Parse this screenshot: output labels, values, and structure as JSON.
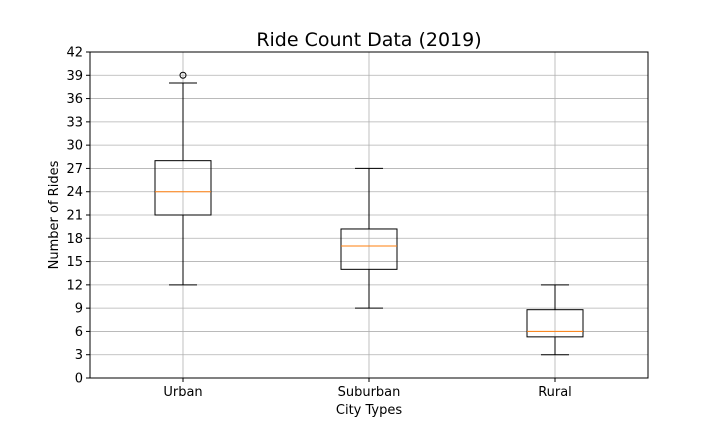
{
  "chart_data": {
    "type": "box",
    "title": "Ride Count Data (2019)",
    "xlabel": "City Types",
    "ylabel": "Number of Rides",
    "ylim": [
      0,
      42
    ],
    "yticks": [
      0,
      3,
      6,
      9,
      12,
      15,
      18,
      21,
      24,
      27,
      30,
      33,
      36,
      39,
      42
    ],
    "grid": true,
    "categories": [
      "Urban",
      "Suburban",
      "Rural"
    ],
    "boxes": [
      {
        "category": "Urban",
        "whisker_low": 12,
        "q1": 21,
        "median": 24,
        "q3": 28,
        "whisker_high": 38,
        "outliers": [
          39
        ]
      },
      {
        "category": "Suburban",
        "whisker_low": 9,
        "q1": 14,
        "median": 17,
        "q3": 19.2,
        "whisker_high": 27,
        "outliers": []
      },
      {
        "category": "Rural",
        "whisker_low": 3,
        "q1": 5.3,
        "median": 6,
        "q3": 8.8,
        "whisker_high": 12,
        "outliers": []
      }
    ],
    "colors": {
      "box": "#000000",
      "median": "#ff7f0e",
      "grid": "#b0b0b0"
    }
  }
}
